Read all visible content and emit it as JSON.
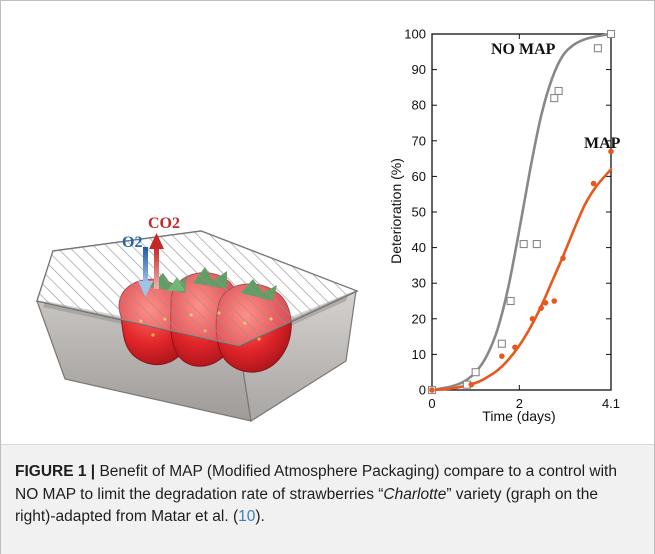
{
  "illustration": {
    "o2_label": "O2",
    "co2_label": "CO2",
    "colors": {
      "o2": "#2166ac",
      "co2": "#c62828",
      "tray": "#b9b6b3",
      "strawberry": "#e0252a",
      "leaves": "#2e7d32"
    }
  },
  "chart_data": {
    "type": "line",
    "xlabel": "Time (days)",
    "ylabel": "Deterioration (%)",
    "xlim": [
      0,
      4.1
    ],
    "ylim": [
      0,
      100
    ],
    "x_ticks": [
      0,
      2,
      4.1
    ],
    "x_tick_labels": [
      "0",
      "2",
      "4.1"
    ],
    "y_ticks": [
      0,
      10,
      20,
      30,
      40,
      50,
      60,
      70,
      80,
      90,
      100
    ],
    "grid": false,
    "series": [
      {
        "name": "NO MAP",
        "color": "#888888",
        "marker": "open-square",
        "label_text": "NO MAP",
        "points": [
          [
            0,
            0
          ],
          [
            0.8,
            1.5
          ],
          [
            1.0,
            5
          ],
          [
            1.6,
            13
          ],
          [
            1.8,
            25
          ],
          [
            2.1,
            41
          ],
          [
            2.4,
            41
          ],
          [
            2.8,
            82
          ],
          [
            2.9,
            84
          ],
          [
            3.8,
            96
          ],
          [
            4.1,
            100
          ]
        ],
        "curve": [
          [
            0,
            0
          ],
          [
            0.25,
            0.5
          ],
          [
            0.5,
            1.2
          ],
          [
            0.75,
            2.5
          ],
          [
            1.0,
            5
          ],
          [
            1.25,
            9.5
          ],
          [
            1.5,
            17
          ],
          [
            1.75,
            29
          ],
          [
            2.0,
            45
          ],
          [
            2.25,
            62
          ],
          [
            2.5,
            77
          ],
          [
            2.75,
            87.5
          ],
          [
            3.0,
            94
          ],
          [
            3.25,
            97
          ],
          [
            3.5,
            98.5
          ],
          [
            3.75,
            99.3
          ],
          [
            4.1,
            100
          ]
        ]
      },
      {
        "name": "MAP",
        "color": "#e8581c",
        "marker": "filled-circle",
        "label_text": "MAP",
        "points": [
          [
            0,
            0
          ],
          [
            0.9,
            1.5
          ],
          [
            1.6,
            9.5
          ],
          [
            1.9,
            12
          ],
          [
            2.3,
            20
          ],
          [
            2.5,
            23
          ],
          [
            2.6,
            24.5
          ],
          [
            2.8,
            25
          ],
          [
            3.0,
            37
          ],
          [
            3.7,
            58
          ],
          [
            4.1,
            67
          ]
        ],
        "curve": [
          [
            0,
            0
          ],
          [
            0.5,
            0.5
          ],
          [
            1.0,
            2
          ],
          [
            1.25,
            3.5
          ],
          [
            1.5,
            5.5
          ],
          [
            1.75,
            8.5
          ],
          [
            2.0,
            12.5
          ],
          [
            2.25,
            17.5
          ],
          [
            2.5,
            23.5
          ],
          [
            2.75,
            30.5
          ],
          [
            3.0,
            37.5
          ],
          [
            3.25,
            45
          ],
          [
            3.5,
            52
          ],
          [
            3.75,
            57
          ],
          [
            4.1,
            62
          ]
        ]
      }
    ]
  },
  "caption": {
    "figure_label": "FIGURE 1 |",
    "text_part1": " Benefit of MAP (Modified Atmosphere Packaging) compare to a control with NO MAP to limit the degradation rate of strawberries “",
    "variety": "Charlotte",
    "text_part2": "” variety (graph on the right)-adapted from Matar et al. (",
    "ref": "10",
    "text_part3": ")."
  }
}
